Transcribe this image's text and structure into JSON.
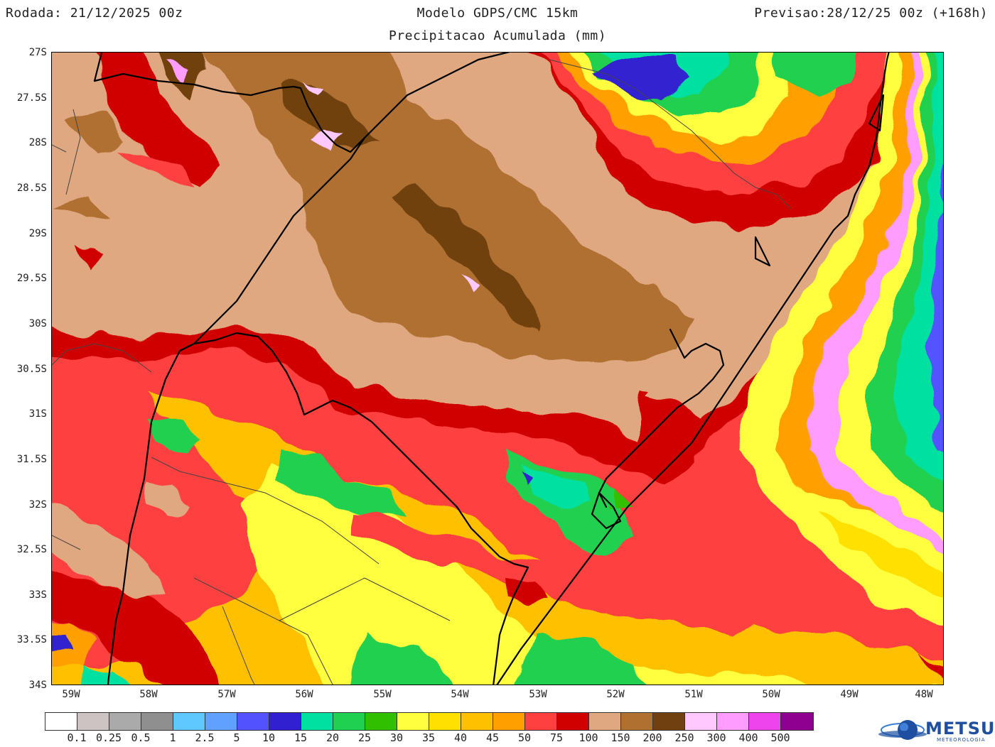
{
  "header": {
    "run": "Rodada: 21/12/2025 00z",
    "model": "Modelo GDPS/CMC 15km",
    "forecast": "Previsao:28/12/25 00z (+168h)",
    "subtitle": "Precipitacao Acumulada (mm)"
  },
  "lat_labels": [
    "27S",
    "27.5S",
    "28S",
    "28.5S",
    "29S",
    "29.5S",
    "30S",
    "30.5S",
    "31S",
    "31.5S",
    "32S",
    "32.5S",
    "33S",
    "33.5S",
    "34S"
  ],
  "lon_labels": [
    "59W",
    "58W",
    "57W",
    "56W",
    "55W",
    "54W",
    "53W",
    "52W",
    "51W",
    "50W",
    "49W",
    "48W"
  ],
  "colorbar": {
    "colors": [
      "#ffffff",
      "#cdc3c3",
      "#aaaaaa",
      "#8f8f8f",
      "#5fc8ff",
      "#60a0ff",
      "#5252ff",
      "#3020d0",
      "#00e0a0",
      "#20d050",
      "#30c000",
      "#ffff40",
      "#ffe000",
      "#ffc000",
      "#ffa000",
      "#ff4040",
      "#d00000",
      "#e0a880",
      "#b07030",
      "#704010",
      "#ffc8ff",
      "#ff9cff",
      "#ee44ee",
      "#900090"
    ],
    "labels": [
      "0.1",
      "0.25",
      "0.5",
      "1",
      "2.5",
      "5",
      "10",
      "15",
      "20",
      "25",
      "30",
      "35",
      "40",
      "45",
      "50",
      "75",
      "100",
      "150",
      "200",
      "250",
      "300",
      "400",
      "500"
    ]
  },
  "logo": {
    "text": "METSUL",
    "sub": "METEOROLOGIA"
  }
}
